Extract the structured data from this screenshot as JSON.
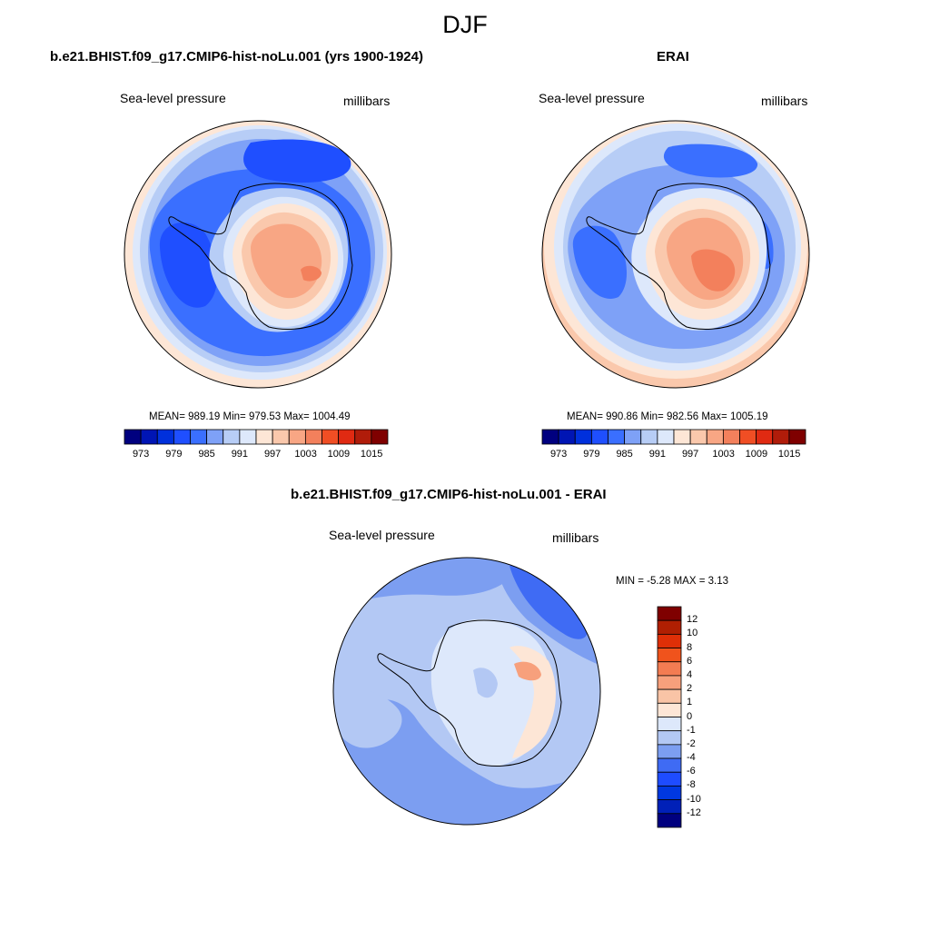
{
  "figure": {
    "title": "DJF"
  },
  "colors": {
    "land_outline": "#000000",
    "abs_scale": [
      "#00007f",
      "#0015b4",
      "#0030dc",
      "#1f4fff",
      "#3a6fff",
      "#7ea1f7",
      "#b7cdf6",
      "#dde8fb",
      "#fde6d6",
      "#fac8ac",
      "#f8a684",
      "#f3805c",
      "#f04e24",
      "#e02a12",
      "#b01c0a",
      "#7f0000"
    ],
    "diff_scale": [
      "#00007f",
      "#0020b8",
      "#0038e0",
      "#1e4cff",
      "#3f6bf4",
      "#7c9ef1",
      "#b3c8f4",
      "#dde8fb",
      "#fde6d6",
      "#f9c4a6",
      "#f7a07c",
      "#f37c52",
      "#f0531c",
      "#df2f07",
      "#b01f02",
      "#7f0000"
    ]
  },
  "panels": [
    {
      "title": "b.e21.BHIST.f09_g17.CMIP6-hist-noLu.001 (yrs 1900-1924)",
      "left_label": "Sea-level pressure",
      "right_label": "millibars",
      "stats": "MEAN= 989.19  Min= 979.53  Max= 1004.49",
      "mean": 989.19,
      "min": 979.53,
      "max": 1004.49,
      "colorbar": {
        "labels": [
          "973",
          "979",
          "985",
          "991",
          "997",
          "1003",
          "1009",
          "1015"
        ]
      }
    },
    {
      "title": "ERAI",
      "left_label": "Sea-level pressure",
      "right_label": "millibars",
      "stats": "MEAN= 990.86  Min= 982.56  Max= 1005.19",
      "mean": 990.86,
      "min": 982.56,
      "max": 1005.19,
      "colorbar": {
        "labels": [
          "973",
          "979",
          "985",
          "991",
          "997",
          "1003",
          "1009",
          "1015"
        ]
      }
    },
    {
      "title": "b.e21.BHIST.f09_g17.CMIP6-hist-noLu.001 - ERAI",
      "left_label": "Sea-level pressure",
      "right_label": "millibars",
      "stats": "MIN =  -5.28 MAX =   3.13",
      "min": -5.28,
      "max": 3.13,
      "colorbar": {
        "labels": [
          "12",
          "10",
          "8",
          "6",
          "4",
          "2",
          "1",
          "0",
          "-1",
          "-2",
          "-4",
          "-6",
          "-8",
          "-10",
          "-12"
        ]
      }
    }
  ]
}
